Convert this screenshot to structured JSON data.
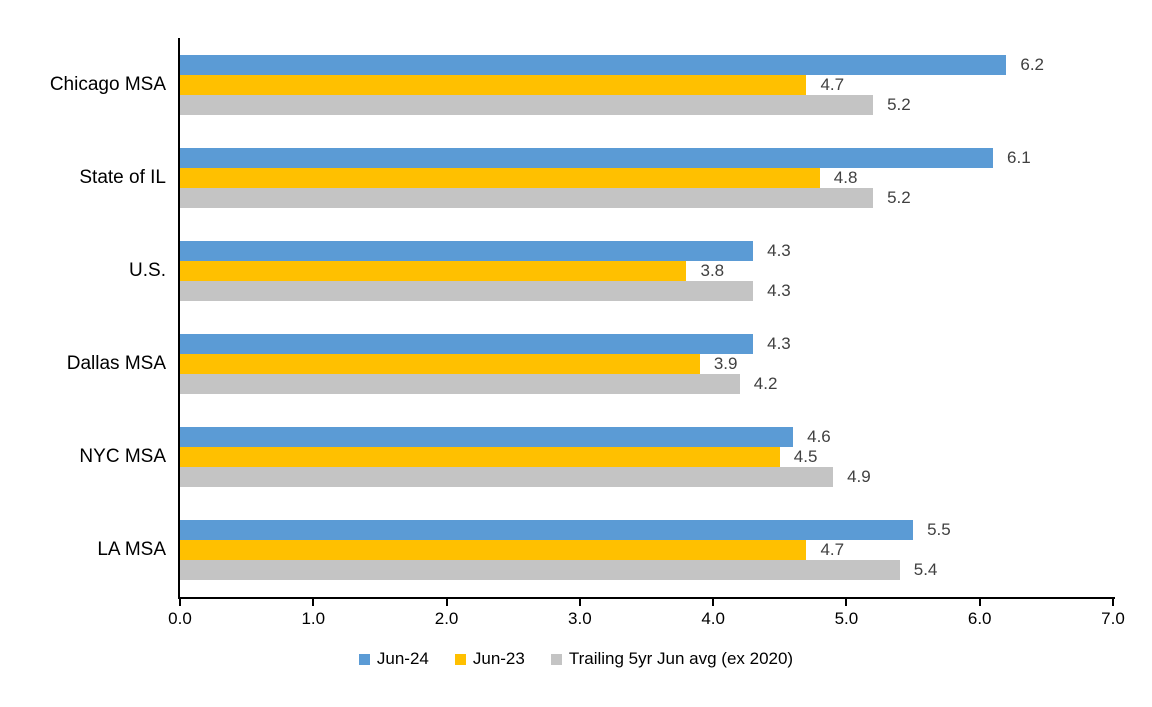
{
  "chart_data": {
    "type": "bar",
    "orientation": "horizontal",
    "title": "",
    "xlabel": "",
    "ylabel": "",
    "categories": [
      "Chicago MSA",
      "State of IL",
      "U.S.",
      "Dallas MSA",
      "NYC MSA",
      "LA MSA"
    ],
    "series": [
      {
        "name": "Jun-24",
        "color": "#5B9BD5",
        "values": [
          6.2,
          6.1,
          4.3,
          4.3,
          4.6,
          5.5
        ]
      },
      {
        "name": "Jun-23",
        "color": "#FFC000",
        "values": [
          4.7,
          4.8,
          3.8,
          3.9,
          4.5,
          4.7
        ]
      },
      {
        "name": "Trailing 5yr Jun avg (ex 2020)",
        "color": "#C4C4C4",
        "values": [
          5.2,
          5.2,
          4.3,
          4.2,
          4.9,
          5.4
        ]
      }
    ],
    "xlim": [
      0.0,
      7.0
    ],
    "x_tick_labels": [
      "0.0",
      "1.0",
      "2.0",
      "3.0",
      "4.0",
      "5.0",
      "6.0",
      "7.0"
    ],
    "data_labels_shown": true,
    "data_label_color": "#404040",
    "axis_color": "#000000",
    "grid": false,
    "legend_position": "bottom"
  }
}
